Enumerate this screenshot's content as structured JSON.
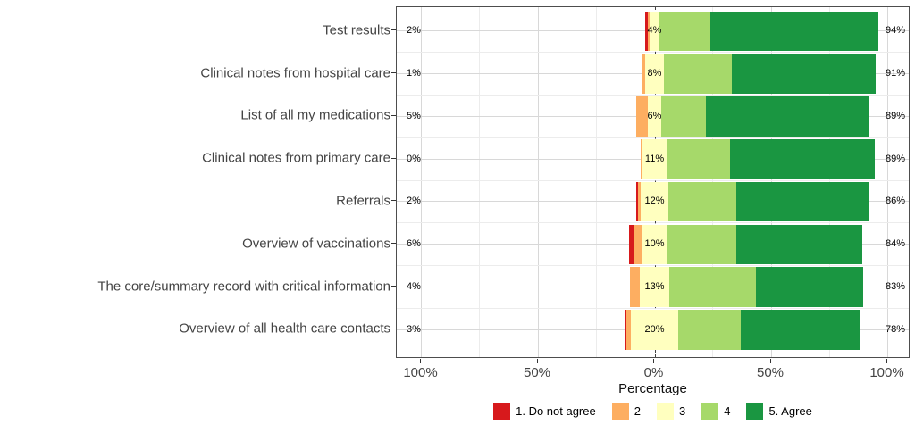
{
  "chart_data": {
    "type": "bar",
    "variant": "diverging-stacked-likert",
    "title": "",
    "xlabel": "Percentage",
    "x_ticks": [
      {
        "label": "100%",
        "value": -100
      },
      {
        "label": "50%",
        "value": -50
      },
      {
        "label": "0%",
        "value": 0
      },
      {
        "label": "50%",
        "value": 50
      },
      {
        "label": "100%",
        "value": 100
      }
    ],
    "xlim": [
      -110,
      110
    ],
    "grid": true,
    "zero_reference_line": "dashed",
    "legend_position": "bottom",
    "legend": [
      {
        "label": "1. Do not agree",
        "color": "#d7191c"
      },
      {
        "label": "2",
        "color": "#fdae61"
      },
      {
        "label": "3",
        "color": "#ffffbf"
      },
      {
        "label": "4",
        "color": "#a6d96a"
      },
      {
        "label": "5. Agree",
        "color": "#1a9641"
      }
    ],
    "neutral_centered_on_zero": true,
    "rows": [
      {
        "category": "Test results",
        "values": [
          1,
          1,
          4,
          22,
          72
        ],
        "left_label": "2%",
        "mid_label": "4%",
        "right_label": "94%"
      },
      {
        "category": "Clinical notes from hospital care",
        "values": [
          0,
          1,
          8,
          29,
          62
        ],
        "left_label": "1%",
        "mid_label": "8%",
        "right_label": "91%"
      },
      {
        "category": "List of all my medications",
        "values": [
          0,
          5,
          6,
          19,
          70
        ],
        "left_label": "5%",
        "mid_label": "6%",
        "right_label": "89%"
      },
      {
        "category": "Clinical notes from primary care",
        "values": [
          0,
          0.4,
          11,
          27,
          62
        ],
        "left_label": "0%",
        "mid_label": "11%",
        "right_label": "89%"
      },
      {
        "category": "Referrals",
        "values": [
          1,
          1,
          12,
          29,
          57
        ],
        "left_label": "2%",
        "mid_label": "12%",
        "right_label": "86%"
      },
      {
        "category": "Overview of vaccinations",
        "values": [
          2,
          4,
          10,
          30,
          54
        ],
        "left_label": "6%",
        "mid_label": "10%",
        "right_label": "84%"
      },
      {
        "category": "The core/summary record with critical information",
        "values": [
          0,
          4,
          13,
          37,
          46
        ],
        "left_label": "4%",
        "mid_label": "13%",
        "right_label": "83%"
      },
      {
        "category": "Overview of all health care contacts",
        "values": [
          1,
          2,
          20,
          27,
          51
        ],
        "left_label": "3%",
        "mid_label": "20%",
        "right_label": "78%"
      }
    ]
  }
}
